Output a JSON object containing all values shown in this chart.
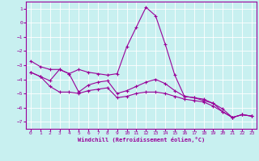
{
  "title": "Windchill (Refroidissement éolien,°C)",
  "background_color": "#c8f0f0",
  "line_color": "#990099",
  "grid_color": "#ffffff",
  "x_values": [
    0,
    1,
    2,
    3,
    4,
    5,
    6,
    7,
    8,
    9,
    10,
    11,
    12,
    13,
    14,
    15,
    16,
    17,
    18,
    19,
    20,
    21,
    22,
    23
  ],
  "line1": [
    -2.7,
    -3.1,
    -3.3,
    -3.3,
    -3.6,
    -3.3,
    -3.5,
    -3.6,
    -3.7,
    -3.6,
    -1.7,
    -0.3,
    1.1,
    0.5,
    -1.5,
    -3.7,
    -5.2,
    -5.3,
    -5.4,
    -5.7,
    -6.1,
    -6.7,
    -6.5,
    -6.6
  ],
  "line2": [
    -3.5,
    -3.8,
    -4.1,
    -3.3,
    -3.6,
    -4.9,
    -4.4,
    -4.2,
    -4.1,
    -5.0,
    -4.8,
    -4.5,
    -4.2,
    -4.0,
    -4.3,
    -4.8,
    -5.2,
    -5.3,
    -5.5,
    -5.7,
    -6.3,
    -6.7,
    -6.5,
    -6.6
  ],
  "line3": [
    -3.5,
    -3.8,
    -4.5,
    -4.9,
    -4.9,
    -5.0,
    -4.8,
    -4.7,
    -4.6,
    -5.3,
    -5.2,
    -5.0,
    -4.9,
    -4.9,
    -5.0,
    -5.2,
    -5.4,
    -5.5,
    -5.6,
    -5.9,
    -6.3,
    -6.7,
    -6.5,
    -6.6
  ],
  "ylim": [
    -7.5,
    1.5
  ],
  "xlim": [
    -0.5,
    23.5
  ],
  "yticks": [
    1,
    0,
    -1,
    -2,
    -3,
    -4,
    -5,
    -6,
    -7
  ],
  "xticks": [
    0,
    1,
    2,
    3,
    4,
    5,
    6,
    7,
    8,
    9,
    10,
    11,
    12,
    13,
    14,
    15,
    16,
    17,
    18,
    19,
    20,
    21,
    22,
    23
  ],
  "marker": "+",
  "marker_size": 3,
  "linewidth": 0.8
}
